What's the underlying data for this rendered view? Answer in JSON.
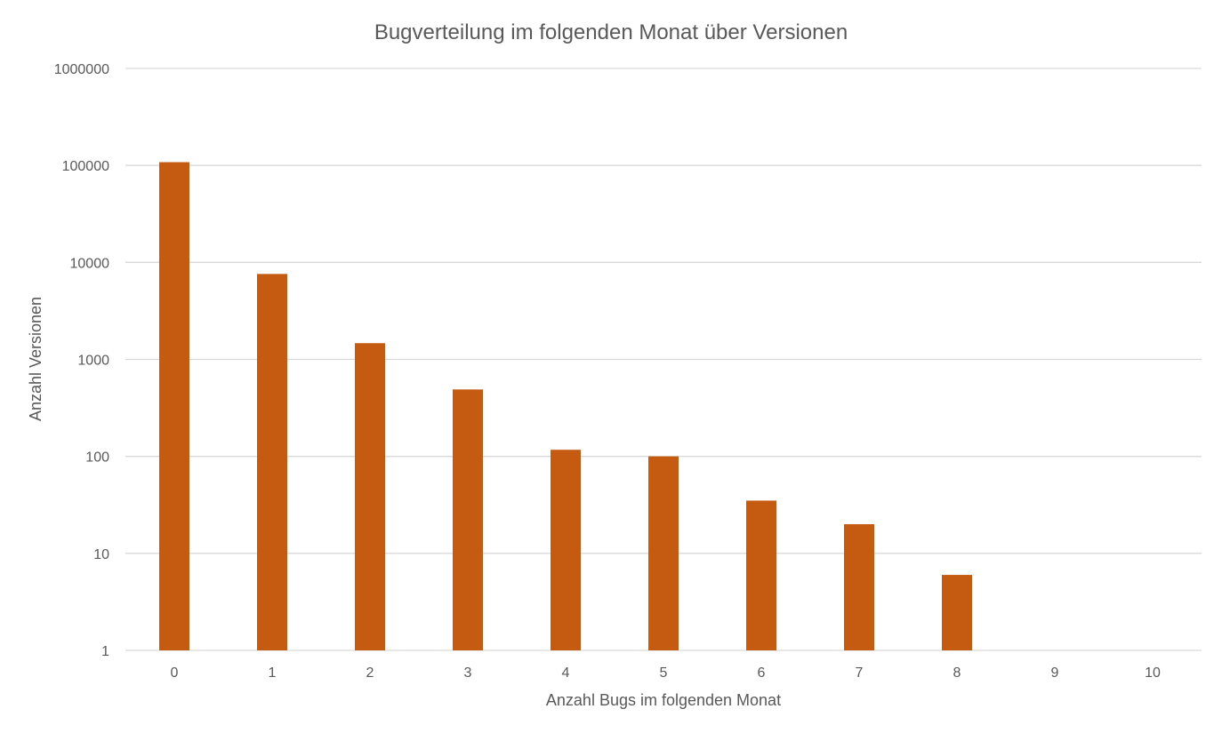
{
  "chart_data": {
    "type": "bar",
    "title": "Bugverteilung im folgenden Monat über Versionen",
    "xlabel": "Anzahl Bugs im folgenden Monat",
    "ylabel": "Anzahl Versionen",
    "y_scale": "log",
    "ylim": [
      1,
      1000000
    ],
    "y_ticks": [
      "1",
      "10",
      "100",
      "1000",
      "10000",
      "100000",
      "1000000"
    ],
    "grid": true,
    "legend": "none",
    "bar_color": "#c55a11",
    "categories": [
      "0",
      "1",
      "2",
      "3",
      "4",
      "5",
      "6",
      "7",
      "8",
      "9",
      "10"
    ],
    "values": [
      108000,
      7600,
      1470,
      490,
      117,
      100,
      35,
      20,
      6,
      1,
      1
    ]
  }
}
